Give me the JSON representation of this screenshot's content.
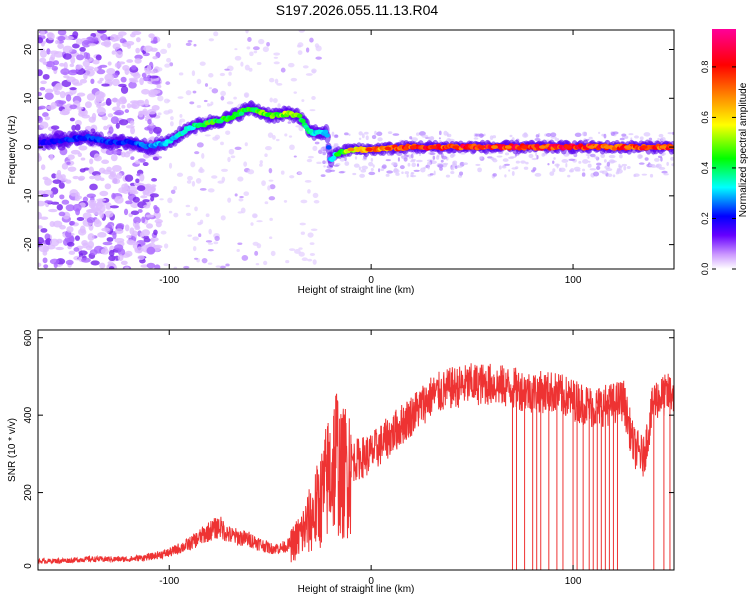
{
  "title": "S197.2026.055.11.13.R04",
  "chart_data": [
    {
      "type": "heatmap",
      "name": "spectrogram",
      "xlabel": "Height of straight line (km)",
      "ylabel": "Frequency (Hz)",
      "xlim": [
        -165,
        150
      ],
      "ylim": [
        -25,
        24
      ],
      "xticks": [
        -100,
        0,
        100
      ],
      "yticks": [
        -20,
        -10,
        0,
        10,
        20
      ],
      "grid": false,
      "colorbar": {
        "label": "Normalized spectral amplitude",
        "range": [
          0,
          0.95
        ],
        "ticks": [
          0.0,
          0.2,
          0.4,
          0.6,
          0.8
        ],
        "colors": [
          "#ffffff",
          "#cc99ff",
          "#6600ff",
          "#0000ff",
          "#00ffff",
          "#00ff00",
          "#ffff00",
          "#ff8800",
          "#ff0000",
          "#ff0099"
        ]
      },
      "ridge": {
        "x": [
          -160,
          -150,
          -140,
          -130,
          -120,
          -110,
          -100,
          -90,
          -80,
          -70,
          -60,
          -50,
          -45,
          -40,
          -35,
          -30,
          -25,
          -22,
          -20,
          -18,
          -15,
          -10,
          0,
          20,
          50,
          100,
          150
        ],
        "freq": [
          1,
          1.5,
          2,
          1,
          1,
          0,
          1,
          4,
          5,
          6,
          8,
          6.5,
          6.5,
          7,
          6,
          3,
          3,
          3,
          -3,
          -1.5,
          -1,
          -0.5,
          -0.5,
          0,
          0,
          0,
          0
        ],
        "amplitude": [
          0.2,
          0.25,
          0.25,
          0.25,
          0.25,
          0.3,
          0.35,
          0.4,
          0.5,
          0.5,
          0.5,
          0.55,
          0.55,
          0.6,
          0.5,
          0.4,
          0.35,
          0.3,
          0.3,
          0.4,
          0.5,
          0.6,
          0.75,
          0.85,
          0.9,
          0.9,
          0.85
        ]
      }
    },
    {
      "type": "line",
      "name": "snr",
      "xlabel": "Height of straight line (km)",
      "ylabel": "SNR (10 * v/v)",
      "xlim": [
        -165,
        150
      ],
      "ylim": [
        0,
        620
      ],
      "xticks": [
        -100,
        0,
        100
      ],
      "yticks": [
        0,
        200,
        400,
        600
      ],
      "color": "#ee3333",
      "grid": false,
      "series": [
        {
          "name": "SNR",
          "x": [
            -165,
            -150,
            -140,
            -130,
            -120,
            -110,
            -100,
            -90,
            -80,
            -75,
            -70,
            -60,
            -50,
            -45,
            -40,
            -35,
            -30,
            -25,
            -20,
            -17,
            -15,
            -10,
            0,
            10,
            20,
            30,
            40,
            50,
            60,
            70,
            80,
            90,
            100,
            110,
            120,
            125,
            130,
            135,
            140,
            150
          ],
          "y": [
            20,
            22,
            25,
            25,
            25,
            30,
            40,
            60,
            90,
            100,
            80,
            70,
            50,
            50,
            60,
            90,
            130,
            180,
            260,
            300,
            240,
            280,
            300,
            350,
            400,
            450,
            470,
            480,
            480,
            470,
            460,
            460,
            440,
            420,
            430,
            440,
            320,
            290,
            440,
            460
          ]
        }
      ],
      "dropouts_x": [
        70,
        72,
        76,
        80,
        82,
        84,
        88,
        92,
        95,
        100,
        102,
        105,
        108,
        110,
        112,
        114,
        116,
        118,
        120,
        122,
        140,
        145,
        148
      ]
    }
  ]
}
